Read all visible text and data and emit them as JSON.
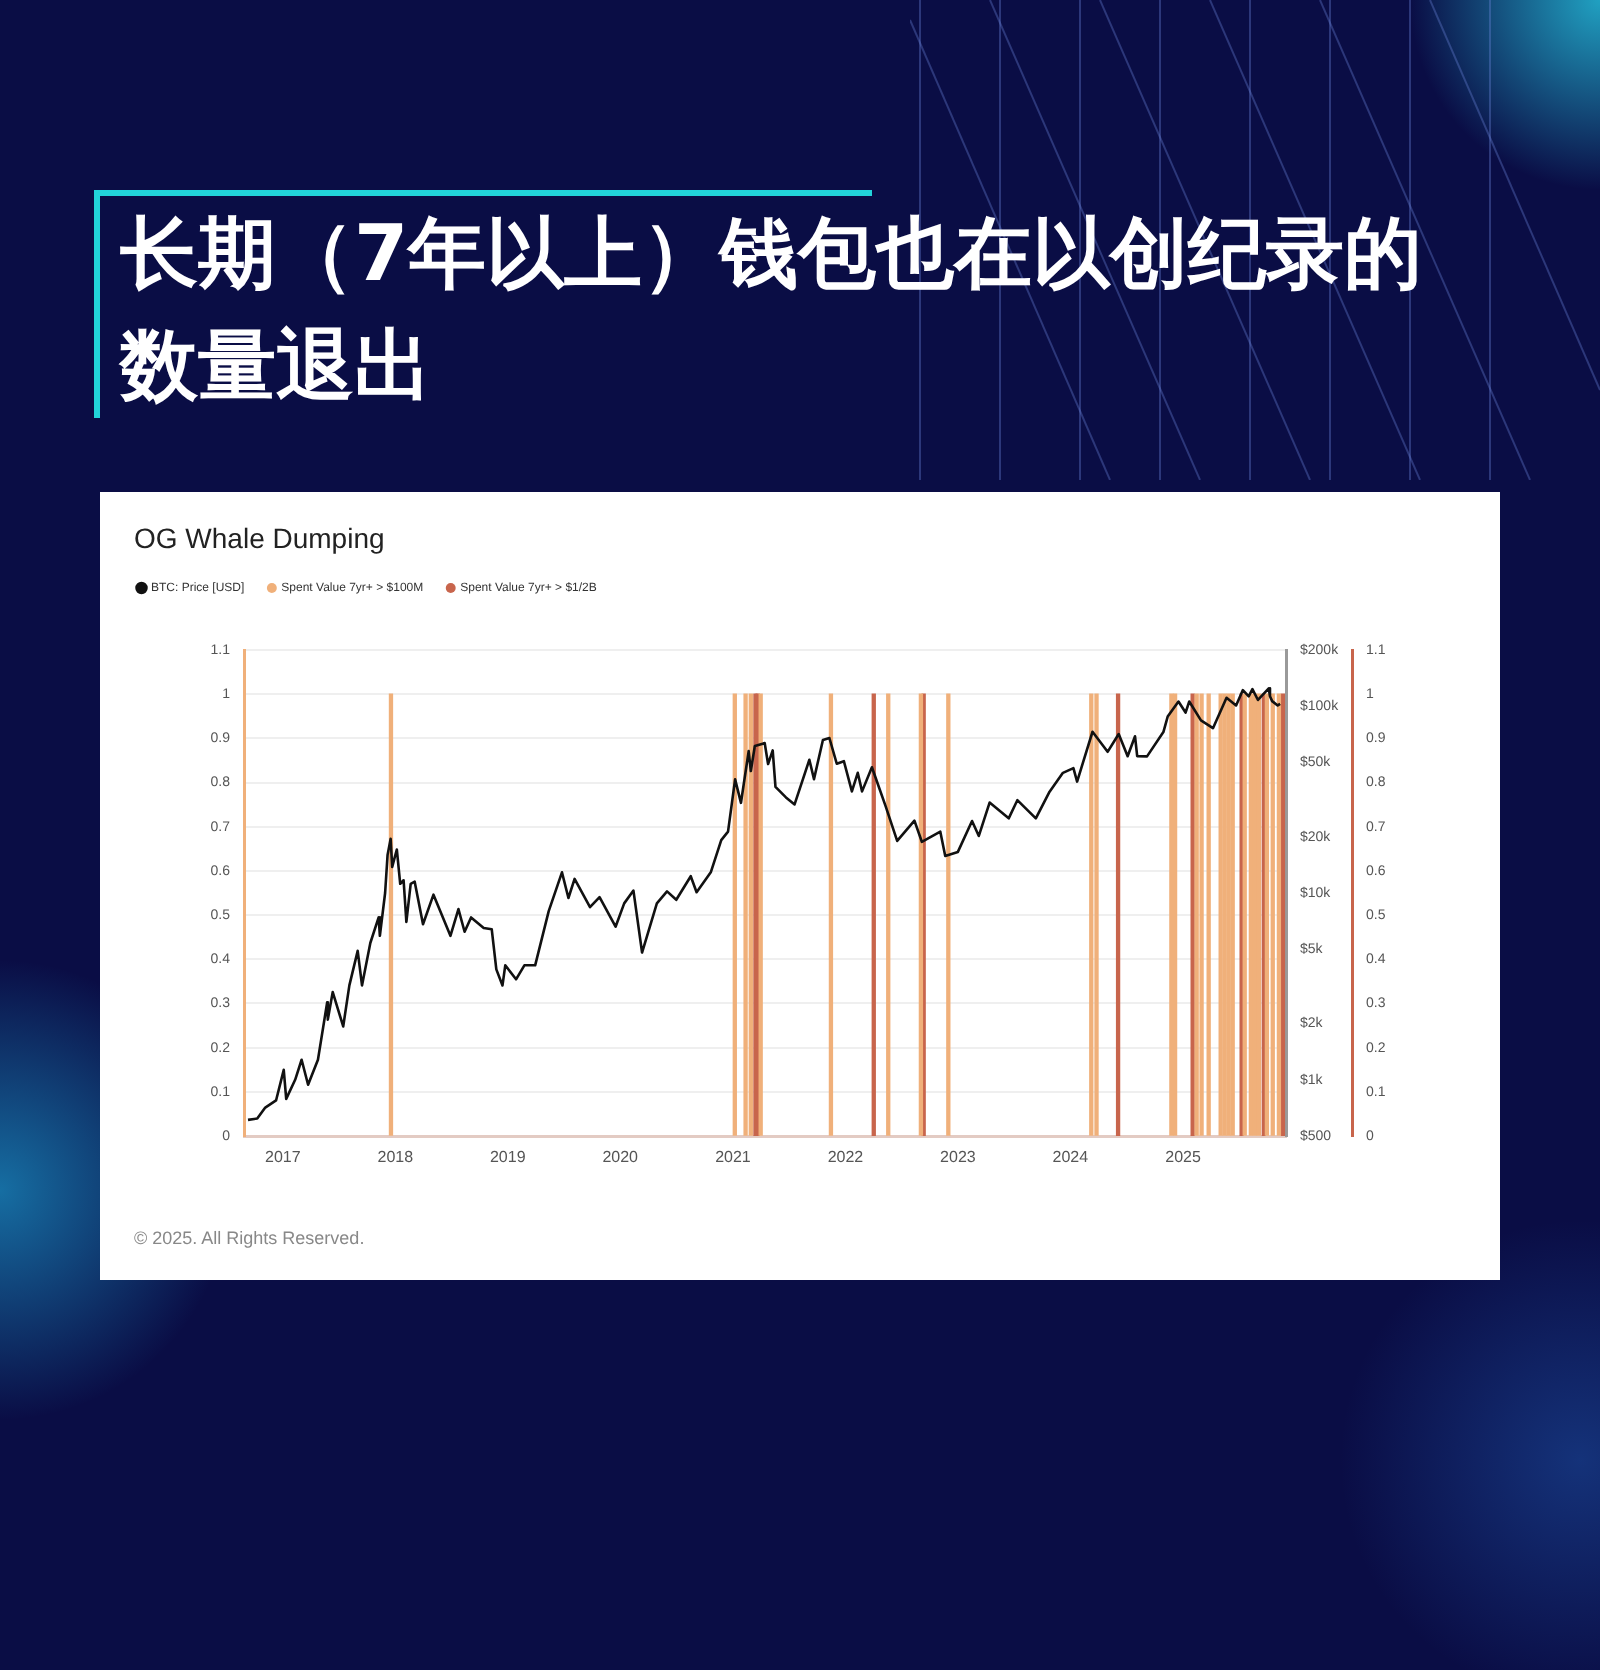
{
  "chart_data": {
    "type": "line",
    "title": "长期（7年以上）钱包也在以创纪录的数量退出",
    "subtitle": "OG Whale Dumping",
    "annotations": [
      "© 2025. All Rights Reserved."
    ],
    "xlim": [
      "2016-08-28",
      "2025-12-01"
    ],
    "xticks": [
      "2017",
      "2018",
      "2019",
      "2020",
      "2021",
      "2022",
      "2023",
      "2024",
      "2025"
    ],
    "ylim": [
      0,
      1.1
    ],
    "yticks": [
      0,
      0.1,
      0.2,
      0.3,
      0.4,
      0.5,
      0.6,
      0.7,
      0.8,
      0.9,
      1,
      1.1
    ],
    "y2lim": [
      500,
      200000
    ],
    "y2ticks": [
      {
        "value": 500,
        "label": "$500"
      },
      {
        "value": 1000,
        "label": "$1k"
      },
      {
        "value": 2000,
        "label": "$2k"
      },
      {
        "value": 5000,
        "label": "$5k"
      },
      {
        "value": 10000,
        "label": "$10k"
      },
      {
        "value": 20000,
        "label": "$20k"
      },
      {
        "value": 50000,
        "label": "$50k"
      },
      {
        "value": 100000,
        "label": "$100k"
      },
      {
        "value": 200000,
        "label": "$200k"
      }
    ],
    "y3lim": [
      0,
      1.1
    ],
    "y3ticks": [
      0,
      0.1,
      0.2,
      0.3,
      0.4,
      0.5,
      0.6,
      0.7,
      0.8,
      0.9,
      1,
      1.1
    ],
    "log": "y2",
    "grid": "y",
    "legend": "top left",
    "marker": "none",
    "series": [
      {
        "name": "BTC: Price [USD]",
        "color": "#111111",
        "axis": "y2",
        "x": [
          "2016-09-10",
          "2016-10-10",
          "2016-11-05",
          "2016-12-10",
          "2017-01-04",
          "2017-01-12",
          "2017-02-10",
          "2017-03-03",
          "2017-03-24",
          "2017-04-25",
          "2017-05-25",
          "2017-05-27",
          "2017-06-12",
          "2017-07-16",
          "2017-08-05",
          "2017-09-01",
          "2017-09-15",
          "2017-10-12",
          "2017-11-08",
          "2017-11-12",
          "2017-11-29",
          "2017-12-07",
          "2017-12-17",
          "2017-12-22",
          "2018-01-06",
          "2018-01-17",
          "2018-01-28",
          "2018-02-06",
          "2018-02-20",
          "2018-03-05",
          "2018-04-01",
          "2018-05-05",
          "2018-06-29",
          "2018-07-25",
          "2018-08-14",
          "2018-09-04",
          "2018-10-15",
          "2018-11-10",
          "2018-11-25",
          "2018-12-15",
          "2018-12-24",
          "2019-01-28",
          "2019-02-24",
          "2019-03-31",
          "2019-05-14",
          "2019-06-26",
          "2019-07-17",
          "2019-08-06",
          "2019-09-25",
          "2019-10-26",
          "2019-12-17",
          "2020-01-14",
          "2020-02-13",
          "2020-03-12",
          "2020-04-29",
          "2020-06-01",
          "2020-07-01",
          "2020-08-17",
          "2020-09-05",
          "2020-10-21",
          "2020-11-24",
          "2020-12-16",
          "2021-01-08",
          "2021-01-27",
          "2021-02-21",
          "2021-02-28",
          "2021-03-13",
          "2021-04-14",
          "2021-04-25",
          "2021-05-10",
          "2021-05-19",
          "2021-06-22",
          "2021-07-20",
          "2021-09-06",
          "2021-09-21",
          "2021-10-20",
          "2021-11-10",
          "2021-12-04",
          "2021-12-27",
          "2022-01-22",
          "2022-02-10",
          "2022-02-24",
          "2022-03-28",
          "2022-05-12",
          "2022-06-18",
          "2022-08-13",
          "2022-09-06",
          "2022-11-05",
          "2022-11-21",
          "2023-01-01",
          "2023-02-16",
          "2023-03-10",
          "2023-04-14",
          "2023-06-15",
          "2023-07-13",
          "2023-09-11",
          "2023-10-24",
          "2023-12-08",
          "2024-01-11",
          "2024-01-23",
          "2024-03-13",
          "2024-05-01",
          "2024-06-06",
          "2024-07-05",
          "2024-07-29",
          "2024-08-05",
          "2024-09-06",
          "2024-10-29",
          "2024-11-12",
          "2024-12-17",
          "2025-01-09",
          "2025-01-21",
          "2025-02-28",
          "2025-04-08",
          "2025-05-22",
          "2025-06-22",
          "2025-07-14",
          "2025-08-02",
          "2025-08-14",
          "2025-09-01",
          "2025-10-06",
          "2025-10-10",
          "2025-10-17",
          "2025-11-04",
          "2025-11-12"
        ],
        "values": [
          610,
          620,
          710,
          775,
          1130,
          790,
          1000,
          1280,
          940,
          1280,
          2600,
          2100,
          2950,
          1930,
          3200,
          4900,
          3200,
          5400,
          7400,
          5900,
          10000,
          16000,
          19500,
          13800,
          17100,
          11200,
          11700,
          7000,
          11200,
          11500,
          6800,
          9800,
          5900,
          8200,
          6200,
          7400,
          6500,
          6400,
          3900,
          3200,
          4100,
          3450,
          4100,
          4100,
          8000,
          12900,
          9400,
          11900,
          8400,
          9500,
          6600,
          8800,
          10300,
          4800,
          8800,
          10200,
          9200,
          12300,
          10100,
          12900,
          19200,
          21300,
          40600,
          30400,
          57500,
          45000,
          61200,
          63500,
          49000,
          58000,
          37000,
          32500,
          29800,
          51700,
          40700,
          66000,
          67600,
          49200,
          50800,
          35000,
          44000,
          35000,
          47100,
          29000,
          19000,
          24400,
          18800,
          21300,
          15800,
          16600,
          24300,
          20200,
          30500,
          25100,
          31400,
          25100,
          34500,
          44000,
          46600,
          39500,
          73000,
          57000,
          71000,
          54000,
          69000,
          54000,
          53900,
          72700,
          88000,
          106000,
          92500,
          106000,
          84000,
          76300,
          111000,
          100900,
          122000,
          113000,
          123500,
          108000,
          124700,
          113000,
          106500,
          101000,
          103000
        ]
      },
      {
        "name": "Spent Value 7yr+ > $100M",
        "type": "bar",
        "color": "#f0b07a",
        "axis": "y",
        "x": [
          "2017-12-18",
          "2021-01-07",
          "2021-02-11",
          "2021-02-28",
          "2021-04-01",
          "2021-11-15",
          "2022-05-20",
          "2022-09-03",
          "2022-12-01",
          "2024-03-09",
          "2024-03-26",
          "2024-11-24",
          "2024-12-06",
          "2025-02-14",
          "2025-03-02",
          "2025-03-25",
          "2025-05-03",
          "2025-05-16",
          "2025-05-29",
          "2025-06-11",
          "2025-07-20",
          "2025-08-09",
          "2025-08-22",
          "2025-09-04",
          "2025-09-30",
          "2025-10-19",
          "2025-11-08"
        ],
        "values": [
          1,
          1,
          1,
          1,
          1,
          1,
          1,
          1,
          1,
          1,
          1,
          1,
          1,
          1,
          1,
          1,
          1,
          1,
          1,
          1,
          1,
          1,
          1,
          1,
          1,
          1,
          1
        ]
      },
      {
        "name": "Spent Value 7yr+ > $1/2B",
        "type": "bar",
        "color": "#c8654c",
        "axis": "y3",
        "x": [
          "2021-03-15",
          "2021-03-22",
          "2022-04-03",
          "2022-09-12",
          "2024-06-04",
          "2025-02-01",
          "2025-07-10",
          "2025-09-20",
          "2025-11-21"
        ],
        "values": [
          1,
          1,
          1,
          1,
          1,
          1,
          1,
          1,
          1
        ]
      }
    ]
  }
}
